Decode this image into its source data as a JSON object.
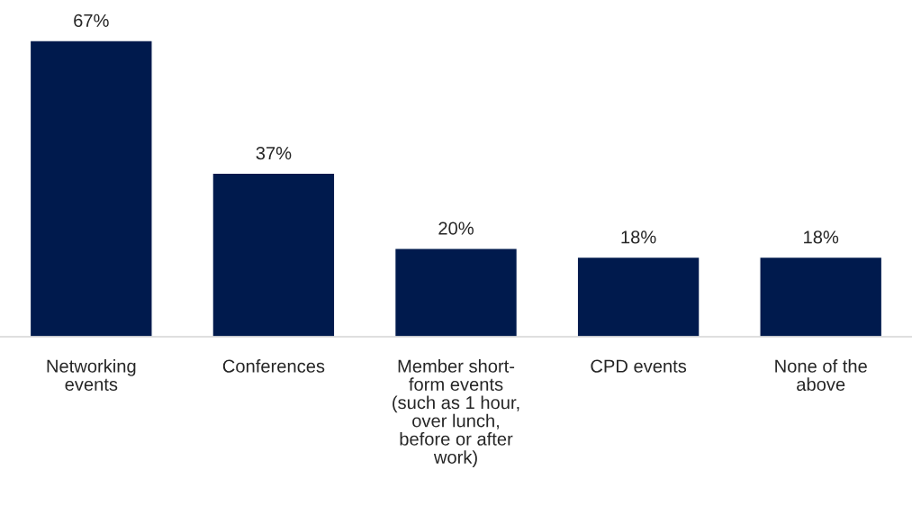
{
  "chart_data": {
    "type": "bar",
    "categories": [
      "Networking events",
      "Conferences",
      "Member short-form events (such as 1 hour, over lunch, before or after work)",
      "CPD events",
      "None of the above"
    ],
    "values": [
      67,
      37,
      20,
      18,
      18
    ],
    "value_labels": [
      "67%",
      "37%",
      "20%",
      "18%",
      "18%"
    ],
    "color": "#001a4d",
    "grid": false,
    "legend": false
  }
}
